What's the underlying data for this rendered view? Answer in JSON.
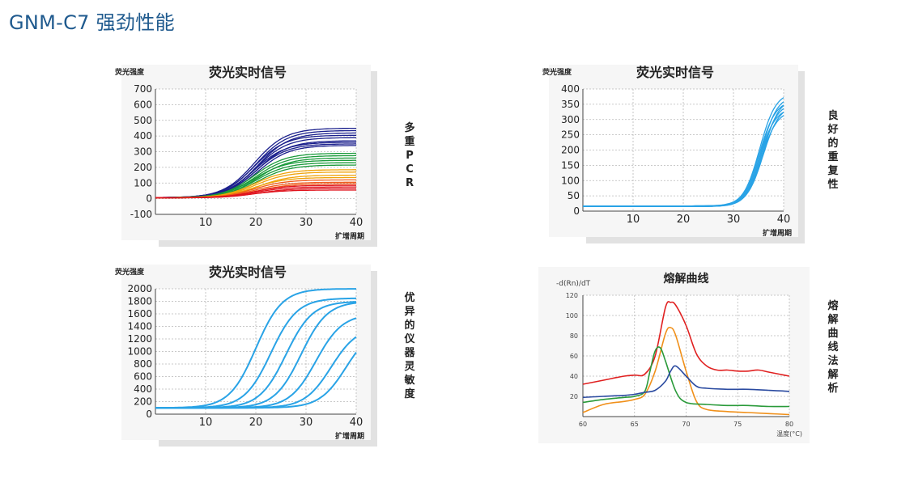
{
  "page": {
    "title": "GNM-C7 强劲性能"
  },
  "charts": [
    {
      "id": "multiplex",
      "chart_data": {
        "type": "line",
        "title": "荧光实时信号",
        "ylabel": "荧光强度",
        "xlabel": "扩增周期",
        "xlim": [
          0,
          40
        ],
        "ylim": [
          -100,
          700
        ],
        "xticks": [
          10,
          20,
          30,
          40
        ],
        "yticks": [
          -100,
          0,
          100,
          200,
          300,
          400,
          500,
          600,
          700
        ],
        "grid": true,
        "series_groups": [
          {
            "color": "#1a1f8c",
            "plateaus": [
              450,
              435,
              420,
              405,
              390,
              370,
              360,
              350,
              340
            ]
          },
          {
            "color": "#1a9a3a",
            "plateaus": [
              290,
              275,
              260,
              245,
              230,
              215
            ]
          },
          {
            "color": "#f0a30a",
            "plateaus": [
              185,
              170,
              150,
              135
            ]
          },
          {
            "color": "#f05a1a",
            "plateaus": [
              120,
              105,
              95
            ]
          },
          {
            "color": "#e0141e",
            "plateaus": [
              85,
              75,
              65,
              55
            ]
          }
        ],
        "baseline": 5,
        "midpoint_cycle": 20,
        "steepness": 0.32
      },
      "side_label": "多重PCR"
    },
    {
      "id": "repeatability",
      "chart_data": {
        "type": "line",
        "title": "荧光实时信号",
        "ylabel": "荧光强度",
        "xlabel": "扩增周期",
        "xlim": [
          0,
          40
        ],
        "ylim": [
          0,
          400
        ],
        "xticks": [
          10,
          20,
          30,
          40
        ],
        "yticks": [
          0,
          50,
          100,
          150,
          200,
          250,
          300,
          350,
          400
        ],
        "grid": true,
        "series_groups": [
          {
            "color": "#29a3e6",
            "plateaus": [
              390,
              380,
              372,
              364,
              356,
              348,
              340,
              332
            ]
          }
        ],
        "baseline": 15,
        "midpoint_cycle": 35.5,
        "steepness": 0.62
      },
      "side_label": "良好的重复性"
    },
    {
      "id": "sensitivity",
      "chart_data": {
        "type": "line",
        "title": "荧光实时信号",
        "ylabel": "荧光强度",
        "xlabel": "扩增周期",
        "xlim": [
          0,
          40
        ],
        "ylim": [
          0,
          2000
        ],
        "xticks": [
          10,
          20,
          30,
          40
        ],
        "yticks": [
          0,
          200,
          400,
          600,
          800,
          1000,
          1200,
          1400,
          1600,
          1800,
          2000
        ],
        "grid": true,
        "series": [
          {
            "midpoint": 20,
            "plateau": 2000
          },
          {
            "midpoint": 23,
            "plateau": 1850
          },
          {
            "midpoint": 26,
            "plateau": 1800
          },
          {
            "midpoint": 29,
            "plateau": 1800
          },
          {
            "midpoint": 32,
            "plateau": 1600
          },
          {
            "midpoint": 35,
            "plateau": 1400
          },
          {
            "midpoint": 38,
            "plateau": 1400
          }
        ],
        "baseline": 100,
        "color": "#29a3e6",
        "steepness": 0.38
      },
      "side_label": "优异的仪器灵敏度"
    },
    {
      "id": "melt",
      "chart_data": {
        "type": "line",
        "title": "熔解曲线",
        "ylabel": "-d(Rn)/dT",
        "xlabel": "温度(°C)",
        "xlim": [
          60,
          80
        ],
        "ylim": [
          0,
          120
        ],
        "xticks": [
          60,
          65,
          70,
          75,
          80
        ],
        "yticks": [
          20,
          40,
          60,
          80,
          100,
          120
        ],
        "grid": true,
        "series": [
          {
            "color": "#e02020",
            "x": [
              60,
              62,
              64,
              65,
              66,
              67,
              68,
              68.5,
              69,
              70,
              71,
              72,
              73,
              74,
              75,
              76,
              77,
              78,
              79,
              80
            ],
            "y": [
              32,
              36,
              40,
              41,
              42,
              60,
              108,
              113,
              110,
              90,
              62,
              50,
              46,
              46,
              45,
              45,
              46,
              44,
              42,
              40
            ]
          },
          {
            "color": "#f0901a",
            "x": [
              60,
              62,
              64,
              65,
              66,
              67,
              68,
              68.5,
              69,
              70,
              71,
              72,
              74,
              76,
              78,
              80
            ],
            "y": [
              4,
              12,
              15,
              17,
              22,
              45,
              82,
              88,
              80,
              45,
              15,
              7,
              5,
              4,
              3,
              2
            ]
          },
          {
            "color": "#2a9a3a",
            "x": [
              60,
              62,
              64,
              65,
              66,
              66.5,
              67,
              67.5,
              68,
              69,
              70,
              72,
              74,
              76,
              78,
              80
            ],
            "y": [
              14,
              17,
              19,
              20,
              25,
              45,
              65,
              68,
              55,
              25,
              14,
              12,
              11,
              11,
              10,
              10
            ]
          },
          {
            "color": "#2a4aa0",
            "x": [
              60,
              62,
              64,
              65,
              66,
              67,
              68,
              68.5,
              69,
              70,
              71,
              72,
              74,
              76,
              78,
              80
            ],
            "y": [
              19,
              20,
              21,
              22,
              24,
              26,
              35,
              45,
              50,
              40,
              30,
              28,
              27,
              27,
              26,
              25
            ]
          }
        ]
      },
      "side_label": "熔解曲线法解析"
    }
  ]
}
